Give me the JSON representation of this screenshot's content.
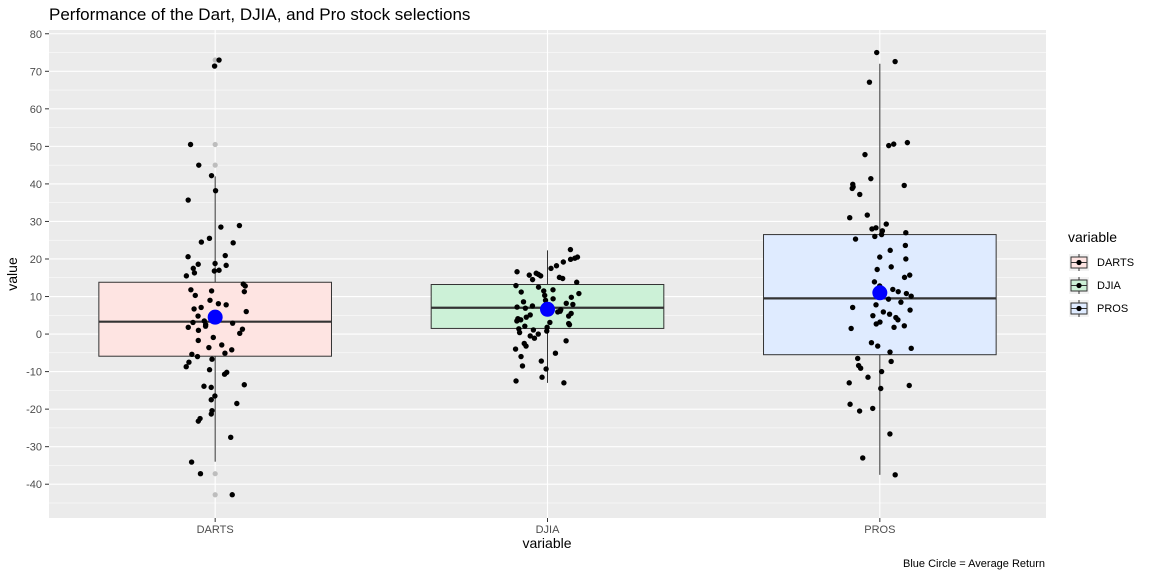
{
  "chart_data": {
    "type": "box",
    "title": "Performance of the Dart, DJIA, and Pro stock selections",
    "xlabel": "variable",
    "ylabel": "value",
    "caption": "Blue Circle = Average Return",
    "ylim": [
      -49,
      81
    ],
    "yticks": [
      -40,
      -30,
      -20,
      -10,
      0,
      10,
      20,
      30,
      40,
      50,
      60,
      70,
      80
    ],
    "grid": true,
    "legend": {
      "title": "variable",
      "position": "right",
      "entries": [
        "DARTS",
        "DJIA",
        "PROS"
      ]
    },
    "colors": {
      "DARTS": "#f8766d",
      "DJIA": "#00ba38",
      "PROS": "#619cff",
      "mean_marker": "#0000ff",
      "points": "#000000",
      "outliers": "#bdbdbd",
      "panel": "#ebebeb"
    },
    "categories": [
      "DARTS",
      "DJIA",
      "PROS"
    ],
    "boxes": [
      {
        "name": "DARTS",
        "q1": -5.9,
        "median": 3.3,
        "q3": 13.8,
        "whisker_low": -34.0,
        "whisker_high": 42.0,
        "mean": 4.5,
        "outliers": [
          71.4,
          73.0,
          50.5,
          45.0,
          -37.2,
          -42.8
        ],
        "points": [
          71.4,
          73.0,
          50.5,
          45.0,
          42.2,
          38.2,
          35.7,
          28.9,
          28.5,
          25.5,
          24.5,
          24.3,
          20.9,
          20.6,
          18.8,
          18.6,
          18.3,
          17.5,
          17.0,
          16.8,
          16.3,
          15.5,
          13.3,
          12.8,
          11.8,
          11.5,
          11.3,
          10.3,
          9.0,
          8.1,
          7.8,
          7.1,
          6.7,
          6.0,
          5.3,
          4.8,
          4.0,
          3.5,
          3.1,
          2.9,
          2.5,
          2.1,
          1.8,
          1.3,
          1.0,
          0.2,
          -0.9,
          -1.7,
          -2.9,
          -3.6,
          -4.2,
          -5.1,
          -5.4,
          -6.0,
          -6.7,
          -7.5,
          -8.7,
          -9.5,
          -10.2,
          -10.7,
          -13.5,
          -13.9,
          -14.2,
          -16.5,
          -17.5,
          -18.5,
          -20.4,
          -21.3,
          -22.5,
          -23.2,
          -27.5,
          -34.1,
          -37.2,
          -42.8
        ]
      },
      {
        "name": "DJIA",
        "q1": 1.5,
        "median": 7.0,
        "q3": 13.2,
        "whisker_low": -13.0,
        "whisker_high": 22.3,
        "mean": 6.6,
        "outliers": [],
        "points": [
          22.5,
          20.5,
          20.2,
          19.9,
          19.2,
          18.2,
          17.5,
          16.6,
          16.2,
          15.9,
          15.7,
          15.5,
          15.1,
          14.8,
          14.5,
          13.8,
          12.9,
          12.5,
          11.8,
          11.5,
          11.2,
          10.8,
          10.3,
          9.8,
          9.4,
          9.0,
          8.6,
          8.2,
          7.9,
          7.5,
          7.2,
          6.9,
          6.5,
          6.1,
          5.9,
          5.5,
          5.1,
          4.8,
          4.5,
          4.1,
          3.8,
          3.5,
          3.1,
          2.8,
          2.5,
          2.1,
          1.8,
          1.4,
          1.1,
          0.8,
          0.4,
          0.0,
          -0.5,
          -1.1,
          -1.8,
          -2.5,
          -3.2,
          -4.0,
          -5.1,
          -6.0,
          -7.2,
          -8.5,
          -9.3,
          -11.5,
          -12.5,
          -13.0
        ]
      },
      {
        "name": "PROS",
        "q1": -5.5,
        "median": 9.5,
        "q3": 26.5,
        "whisker_low": -37.5,
        "whisker_high": 72.0,
        "mean": 11.0,
        "outliers": [],
        "points": [
          75.0,
          72.6,
          67.1,
          51.0,
          50.6,
          50.2,
          47.8,
          41.4,
          39.9,
          39.6,
          39.2,
          38.8,
          37.2,
          31.7,
          31.0,
          29.3,
          28.3,
          28.0,
          27.5,
          27.0,
          26.5,
          26.0,
          25.3,
          23.6,
          22.3,
          20.5,
          20.0,
          17.9,
          17.2,
          15.7,
          15.1,
          13.9,
          12.8,
          11.9,
          11.3,
          10.8,
          10.4,
          10.1,
          9.3,
          8.5,
          7.8,
          7.1,
          6.4,
          5.9,
          5.3,
          4.9,
          4.4,
          3.8,
          3.2,
          2.7,
          2.2,
          1.8,
          1.5,
          -2.3,
          -3.2,
          -3.8,
          -4.8,
          -6.5,
          -7.3,
          -8.4,
          -9.1,
          -10.0,
          -11.5,
          -13.0,
          -13.7,
          -14.5,
          -18.7,
          -19.8,
          -20.5,
          -26.6,
          -33.0,
          -37.5
        ]
      }
    ]
  }
}
